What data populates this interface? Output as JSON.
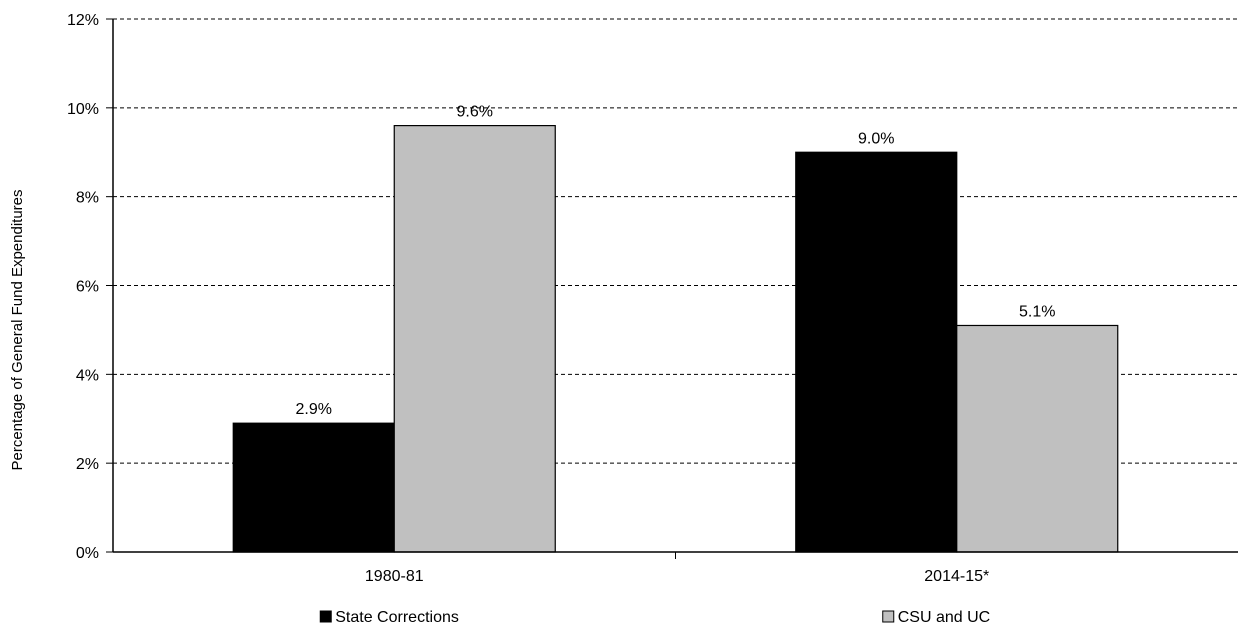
{
  "chart_data": {
    "type": "bar",
    "categories": [
      "1980-81",
      "2014-15*"
    ],
    "series": [
      {
        "name": "State Corrections",
        "values": [
          2.9,
          9.0
        ],
        "labels": [
          "2.9%",
          "9.0%"
        ],
        "color": "#000000"
      },
      {
        "name": "CSU and UC",
        "values": [
          9.6,
          5.1
        ],
        "labels": [
          "9.6%",
          "5.1%"
        ],
        "color": "#c0c0c0"
      }
    ],
    "ylabel": "Percentage of General Fund Expenditures",
    "ylim": [
      0,
      12
    ],
    "yticks": [
      0,
      2,
      4,
      6,
      8,
      10,
      12
    ],
    "ytick_labels": [
      "0%",
      "2%",
      "4%",
      "6%",
      "8%",
      "10%",
      "12%"
    ],
    "grid": "dashed horizontal",
    "legend_position": "bottom"
  }
}
